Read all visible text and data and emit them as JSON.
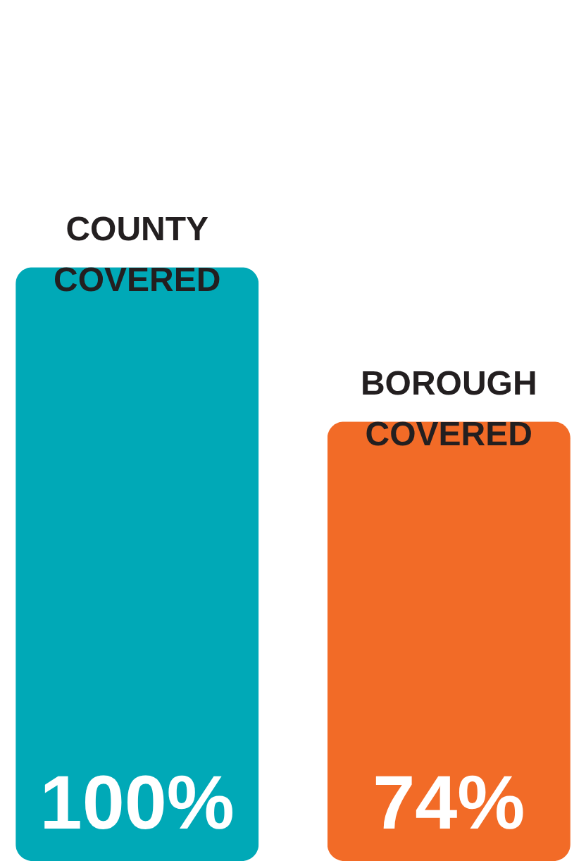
{
  "chart_data": {
    "type": "bar",
    "categories": [
      "COUNTY COVERED",
      "BOROUGH COVERED"
    ],
    "values": [
      100,
      74
    ],
    "colors": [
      "#00a9b7",
      "#f26b27"
    ],
    "value_labels": [
      "100%",
      "74%"
    ],
    "tick_labels": false
  }
}
